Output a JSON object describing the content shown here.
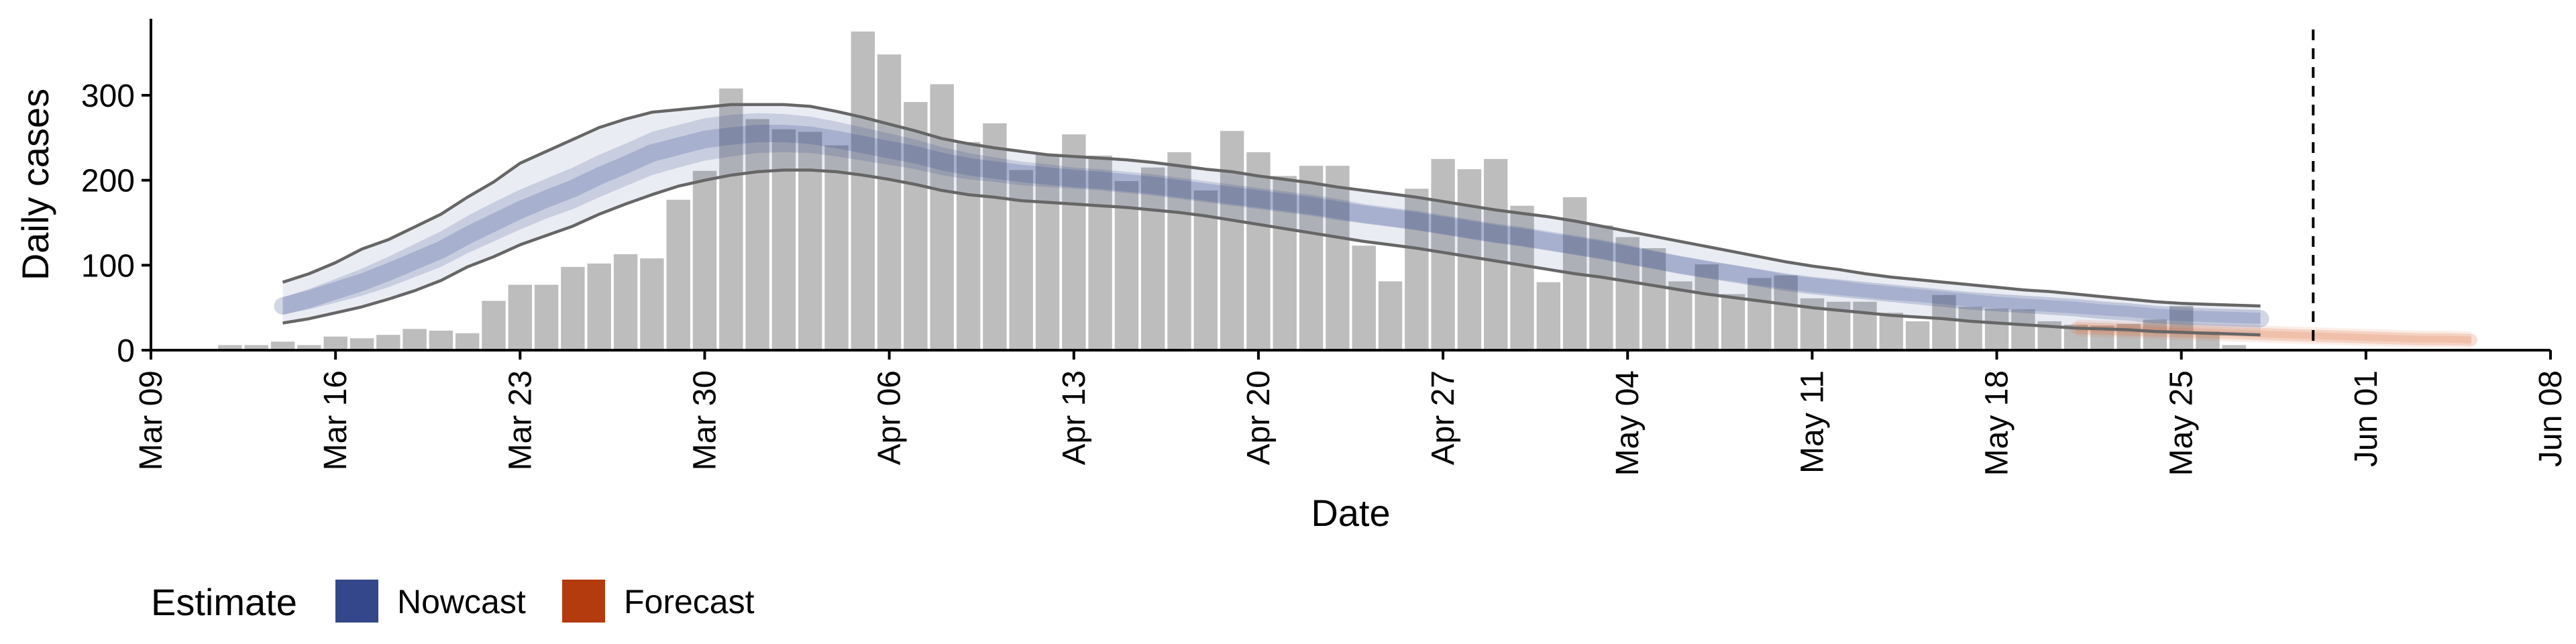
{
  "chart_data": {
    "type": "bar",
    "xlabel": "Date",
    "ylabel": "Daily cases",
    "x_range": [
      "2020-03-09",
      "2020-06-08"
    ],
    "ylim": [
      0,
      390
    ],
    "y_ticks": [
      0,
      100,
      200,
      300
    ],
    "x_ticks": [
      {
        "date": "2020-03-09",
        "label": "Mar 09"
      },
      {
        "date": "2020-03-16",
        "label": "Mar 16"
      },
      {
        "date": "2020-03-23",
        "label": "Mar 23"
      },
      {
        "date": "2020-03-30",
        "label": "Mar 30"
      },
      {
        "date": "2020-04-06",
        "label": "Apr 06"
      },
      {
        "date": "2020-04-13",
        "label": "Apr 13"
      },
      {
        "date": "2020-04-20",
        "label": "Apr 20"
      },
      {
        "date": "2020-04-27",
        "label": "Apr 27"
      },
      {
        "date": "2020-05-04",
        "label": "May 04"
      },
      {
        "date": "2020-05-11",
        "label": "May 11"
      },
      {
        "date": "2020-05-18",
        "label": "May 18"
      },
      {
        "date": "2020-05-25",
        "label": "May 25"
      },
      {
        "date": "2020-06-01",
        "label": "Jun 01"
      },
      {
        "date": "2020-06-08",
        "label": "Jun 08"
      }
    ],
    "grid": false,
    "legend": {
      "position": "bottom-left",
      "title": "Estimate",
      "items": [
        {
          "label": "Nowcast",
          "color": "#34478b"
        },
        {
          "label": "Forecast",
          "color": "#b33b0e"
        }
      ]
    },
    "colors": {
      "bars": "#bdbdbd",
      "nowcast_band": "#34478b",
      "forecast_band": "#e0703f",
      "bound_lines": "#666666",
      "vline": "#000000"
    },
    "reference_line": {
      "date": "2020-05-30",
      "style": "dashed"
    },
    "bars": {
      "start_date": "2020-03-12",
      "values": [
        6,
        6,
        10,
        6,
        16,
        14,
        18,
        25,
        23,
        20,
        58,
        77,
        77,
        98,
        102,
        113,
        108,
        177,
        211,
        308,
        272,
        260,
        257,
        241,
        375,
        348,
        292,
        313,
        245,
        267,
        212,
        231,
        254,
        229,
        199,
        215,
        233,
        188,
        258,
        233,
        205,
        217,
        217,
        123,
        81,
        190,
        225,
        213,
        225,
        170,
        80,
        180,
        147,
        133,
        120,
        81,
        101,
        66,
        85,
        88,
        61,
        57,
        57,
        44,
        34,
        65,
        51,
        49,
        48,
        34,
        30,
        29,
        31,
        36,
        52,
        22,
        6
      ]
    },
    "nowcast": {
      "start_date": "2020-03-14",
      "median": [
        52,
        60,
        70,
        80,
        92,
        105,
        118,
        135,
        150,
        165,
        178,
        190,
        205,
        218,
        232,
        240,
        248,
        252,
        255,
        255,
        253,
        248,
        242,
        236,
        230,
        222,
        216,
        212,
        208,
        205,
        202,
        200,
        197,
        194,
        190,
        186,
        182,
        178,
        174,
        170,
        165,
        160,
        156,
        152,
        147,
        142,
        137,
        133,
        128,
        123,
        118,
        112,
        106,
        100,
        95,
        90,
        85,
        80,
        76,
        73,
        70,
        67,
        64,
        61,
        58,
        56,
        54,
        52,
        50,
        47,
        45,
        42,
        40,
        39,
        38,
        37
      ],
      "inner": [
        [
          42,
          62
        ],
        [
          48,
          72
        ],
        [
          56,
          84
        ],
        [
          64,
          96
        ],
        [
          74,
          110
        ],
        [
          86,
          125
        ],
        [
          98,
          140
        ],
        [
          114,
          158
        ],
        [
          128,
          174
        ],
        [
          142,
          189
        ],
        [
          155,
          202
        ],
        [
          166,
          215
        ],
        [
          180,
          230
        ],
        [
          193,
          243
        ],
        [
          206,
          257
        ],
        [
          215,
          265
        ],
        [
          223,
          273
        ],
        [
          228,
          277
        ],
        [
          232,
          279
        ],
        [
          233,
          278
        ],
        [
          232,
          275
        ],
        [
          228,
          269
        ],
        [
          223,
          262
        ],
        [
          218,
          255
        ],
        [
          213,
          248
        ],
        [
          206,
          239
        ],
        [
          201,
          232
        ],
        [
          198,
          227
        ],
        [
          194,
          222
        ],
        [
          192,
          219
        ],
        [
          190,
          215
        ],
        [
          188,
          213
        ],
        [
          185,
          210
        ],
        [
          182,
          207
        ],
        [
          178,
          203
        ],
        [
          174,
          199
        ],
        [
          170,
          195
        ],
        [
          166,
          191
        ],
        [
          162,
          187
        ],
        [
          158,
          183
        ],
        [
          153,
          178
        ],
        [
          149,
          172
        ],
        [
          145,
          168
        ],
        [
          141,
          164
        ],
        [
          136,
          159
        ],
        [
          131,
          154
        ],
        [
          126,
          149
        ],
        [
          122,
          145
        ],
        [
          117,
          140
        ],
        [
          112,
          135
        ],
        [
          107,
          130
        ],
        [
          101,
          124
        ],
        [
          96,
          117
        ],
        [
          90,
          111
        ],
        [
          85,
          105
        ],
        [
          81,
          100
        ],
        [
          76,
          95
        ],
        [
          72,
          89
        ],
        [
          68,
          85
        ],
        [
          65,
          82
        ],
        [
          62,
          78
        ],
        [
          59,
          75
        ],
        [
          57,
          72
        ],
        [
          54,
          69
        ],
        [
          51,
          66
        ],
        [
          49,
          63
        ],
        [
          47,
          61
        ],
        [
          45,
          59
        ],
        [
          43,
          57
        ],
        [
          41,
          54
        ],
        [
          39,
          52
        ],
        [
          36,
          49
        ],
        [
          34,
          47
        ],
        [
          33,
          46
        ],
        [
          32,
          45
        ],
        [
          31,
          44
        ]
      ],
      "outer": [
        [
          32,
          80
        ],
        [
          37,
          90
        ],
        [
          44,
          103
        ],
        [
          51,
          119
        ],
        [
          60,
          130
        ],
        [
          70,
          145
        ],
        [
          82,
          160
        ],
        [
          98,
          180
        ],
        [
          110,
          198
        ],
        [
          124,
          220
        ],
        [
          135,
          234
        ],
        [
          146,
          248
        ],
        [
          160,
          262
        ],
        [
          172,
          272
        ],
        [
          183,
          280
        ],
        [
          193,
          283
        ],
        [
          200,
          286
        ],
        [
          206,
          289
        ],
        [
          210,
          289
        ],
        [
          212,
          289
        ],
        [
          212,
          287
        ],
        [
          210,
          281
        ],
        [
          206,
          274
        ],
        [
          201,
          266
        ],
        [
          195,
          258
        ],
        [
          188,
          249
        ],
        [
          183,
          243
        ],
        [
          180,
          238
        ],
        [
          176,
          234
        ],
        [
          174,
          230
        ],
        [
          172,
          228
        ],
        [
          170,
          226
        ],
        [
          168,
          224
        ],
        [
          165,
          221
        ],
        [
          162,
          217
        ],
        [
          158,
          213
        ],
        [
          153,
          210
        ],
        [
          148,
          205
        ],
        [
          143,
          201
        ],
        [
          138,
          197
        ],
        [
          133,
          192
        ],
        [
          128,
          188
        ],
        [
          124,
          184
        ],
        [
          120,
          180
        ],
        [
          115,
          175
        ],
        [
          110,
          170
        ],
        [
          105,
          165
        ],
        [
          100,
          161
        ],
        [
          95,
          157
        ],
        [
          90,
          152
        ],
        [
          86,
          146
        ],
        [
          81,
          140
        ],
        [
          76,
          134
        ],
        [
          71,
          128
        ],
        [
          66,
          122
        ],
        [
          62,
          116
        ],
        [
          58,
          110
        ],
        [
          54,
          104
        ],
        [
          50,
          99
        ],
        [
          47,
          95
        ],
        [
          44,
          90
        ],
        [
          41,
          86
        ],
        [
          39,
          83
        ],
        [
          37,
          80
        ],
        [
          34,
          77
        ],
        [
          32,
          74
        ],
        [
          30,
          71
        ],
        [
          28,
          69
        ],
        [
          26,
          66
        ],
        [
          25,
          63
        ],
        [
          24,
          60
        ],
        [
          22,
          57
        ],
        [
          21,
          55
        ],
        [
          20,
          54
        ],
        [
          19,
          53
        ],
        [
          18,
          52
        ]
      ]
    },
    "forecast": {
      "start_date": "2020-05-21",
      "median": [
        26,
        25,
        24,
        23,
        22,
        21,
        20,
        19,
        18,
        17,
        16,
        15,
        14,
        13,
        13,
        12
      ],
      "inner": [
        [
          22,
          30
        ],
        [
          21,
          29
        ],
        [
          20,
          28
        ],
        [
          19,
          27
        ],
        [
          18,
          26
        ],
        [
          17,
          25
        ],
        [
          16,
          24
        ],
        [
          15,
          23
        ],
        [
          14,
          22
        ],
        [
          13,
          21
        ],
        [
          12,
          20
        ],
        [
          11,
          19
        ],
        [
          10,
          18
        ],
        [
          9,
          17
        ],
        [
          9,
          17
        ],
        [
          8,
          16
        ]
      ],
      "outer": [
        [
          16,
          36
        ],
        [
          15,
          35
        ],
        [
          14,
          34
        ],
        [
          13,
          33
        ],
        [
          12,
          32
        ],
        [
          11,
          31
        ],
        [
          10,
          30
        ],
        [
          9,
          29
        ],
        [
          8,
          28
        ],
        [
          7,
          27
        ],
        [
          6,
          26
        ],
        [
          5,
          25
        ],
        [
          4,
          24
        ],
        [
          3,
          23
        ],
        [
          3,
          23
        ],
        [
          2,
          22
        ]
      ]
    }
  }
}
